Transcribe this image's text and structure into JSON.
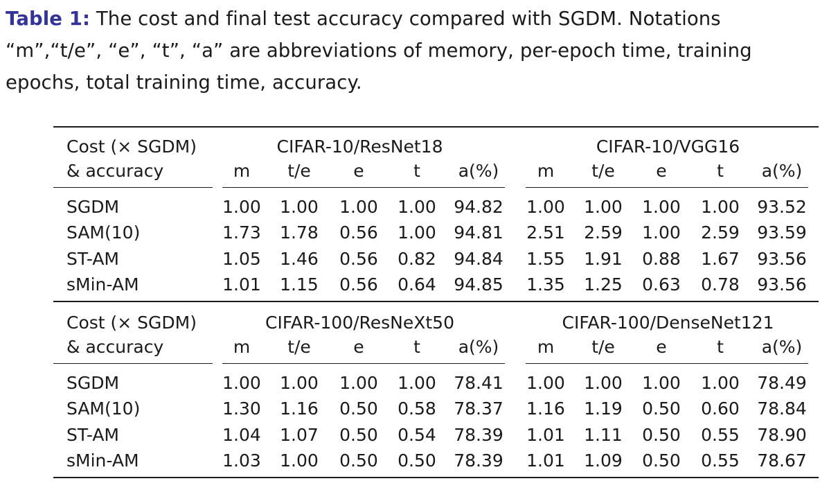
{
  "caption": {
    "label": "Table 1:",
    "text": " The cost and final test accuracy compared with SGDM. Notations “m”,“t/e”, “e”, “t”, “a” are abbreviations of memory, per-epoch time, training epochs, total training time, accuracy."
  },
  "table": {
    "header_line1": "Cost (× SGDM)",
    "header_line2": "& accuracy",
    "sub_columns": [
      "m",
      "t/e",
      "e",
      "t",
      "a(%)"
    ],
    "blocks": [
      {
        "groups": [
          "CIFAR-10/ResNet18",
          "CIFAR-10/VGG16"
        ],
        "rows": [
          {
            "method": "SGDM",
            "g1": [
              "1.00",
              "1.00",
              "1.00",
              "1.00",
              "94.82"
            ],
            "g2": [
              "1.00",
              "1.00",
              "1.00",
              "1.00",
              "93.52"
            ]
          },
          {
            "method": "SAM(10)",
            "g1": [
              "1.73",
              "1.78",
              "0.56",
              "1.00",
              "94.81"
            ],
            "g2": [
              "2.51",
              "2.59",
              "1.00",
              "2.59",
              "93.59"
            ]
          },
          {
            "method": "ST-AM",
            "g1": [
              "1.05",
              "1.46",
              "0.56",
              "0.82",
              "94.84"
            ],
            "g2": [
              "1.55",
              "1.91",
              "0.88",
              "1.67",
              "93.56"
            ]
          },
          {
            "method": "sMin-AM",
            "g1": [
              "1.01",
              "1.15",
              "0.56",
              "0.64",
              "94.85"
            ],
            "g2": [
              "1.35",
              "1.25",
              "0.63",
              "0.78",
              "93.56"
            ]
          }
        ]
      },
      {
        "groups": [
          "CIFAR-100/ResNeXt50",
          "CIFAR-100/DenseNet121"
        ],
        "rows": [
          {
            "method": "SGDM",
            "g1": [
              "1.00",
              "1.00",
              "1.00",
              "1.00",
              "78.41"
            ],
            "g2": [
              "1.00",
              "1.00",
              "1.00",
              "1.00",
              "78.49"
            ]
          },
          {
            "method": "SAM(10)",
            "g1": [
              "1.30",
              "1.16",
              "0.50",
              "0.58",
              "78.37"
            ],
            "g2": [
              "1.16",
              "1.19",
              "0.50",
              "0.60",
              "78.84"
            ]
          },
          {
            "method": "ST-AM",
            "g1": [
              "1.04",
              "1.07",
              "0.50",
              "0.54",
              "78.39"
            ],
            "g2": [
              "1.01",
              "1.11",
              "0.50",
              "0.55",
              "78.90"
            ]
          },
          {
            "method": "sMin-AM",
            "g1": [
              "1.03",
              "1.00",
              "0.50",
              "0.50",
              "78.39"
            ],
            "g2": [
              "1.01",
              "1.09",
              "0.50",
              "0.55",
              "78.67"
            ]
          }
        ]
      }
    ]
  }
}
